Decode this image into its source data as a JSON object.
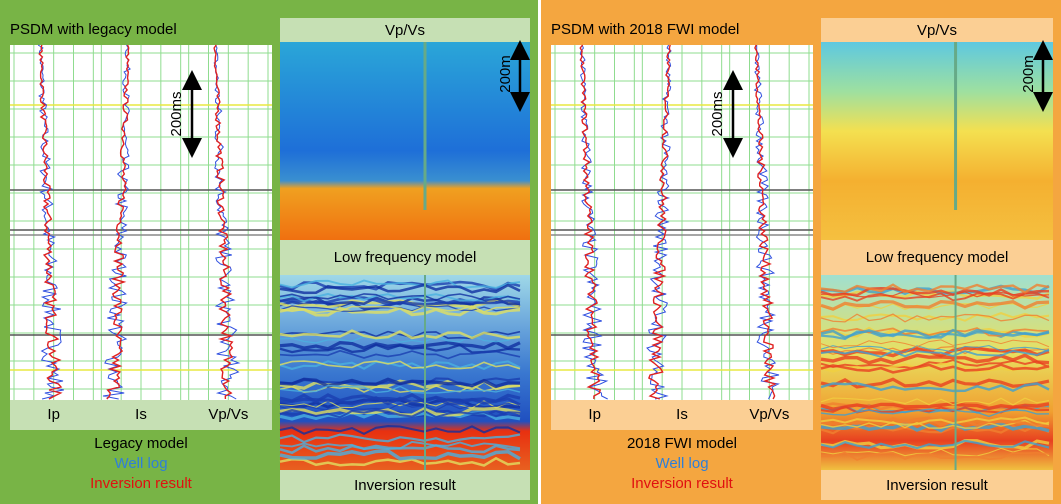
{
  "panels": [
    {
      "title": "PSDM with legacy model",
      "tracks": [
        "Ip",
        "Is",
        "Vp/Vs"
      ],
      "time_scale": "200ms",
      "legend": [
        "Legacy model",
        "Well log",
        "Inversion result"
      ],
      "vpvs_title": "Vp/Vs",
      "depth_scale": "200m",
      "low_frequency_label": "Low frequency model",
      "inversion_label": "Inversion result"
    },
    {
      "title": "PSDM with 2018 FWI model",
      "tracks": [
        "Ip",
        "Is",
        "Vp/Vs"
      ],
      "time_scale": "200ms",
      "legend": [
        "2018 FWI model",
        "Well log",
        "Inversion result"
      ],
      "vpvs_title": "Vp/Vs",
      "depth_scale": "200m",
      "low_frequency_label": "Low frequency model",
      "inversion_label": "Inversion result"
    }
  ]
}
